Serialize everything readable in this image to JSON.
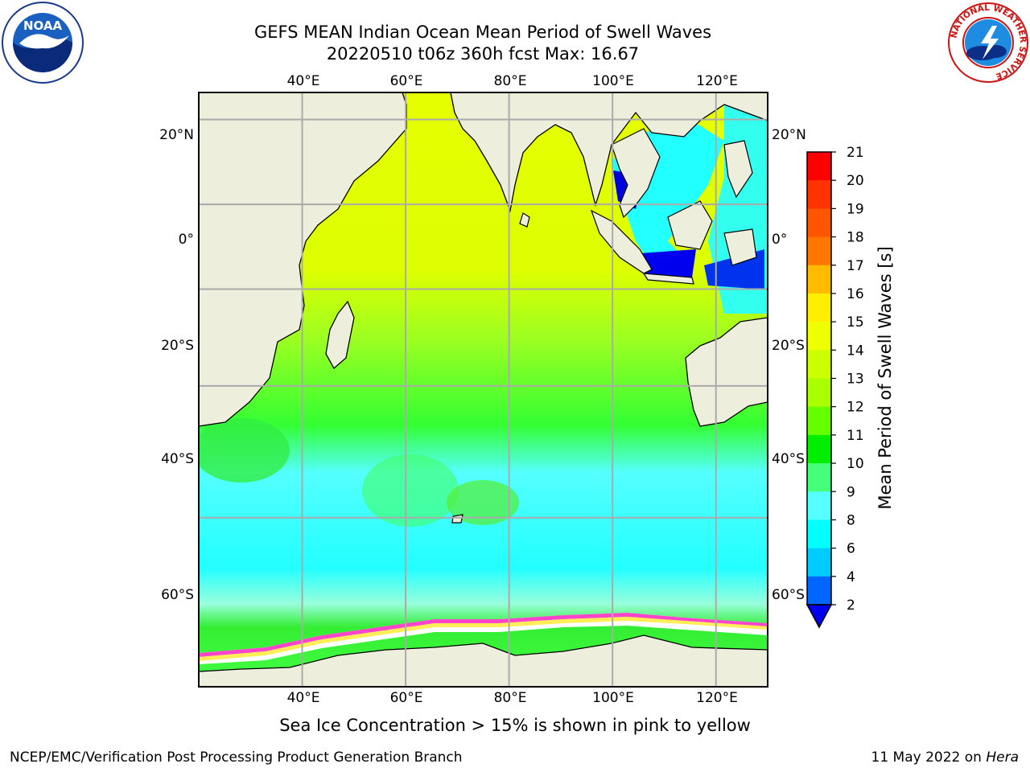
{
  "title_line1": "GEFS MEAN Indian Ocean Mean Period of Swell Waves",
  "title_line2": "20220510 t06z 360h fcst   Max: 16.67",
  "map": {
    "lon_labels": [
      "40°E",
      "60°E",
      "80°E",
      "100°E",
      "120°E"
    ],
    "lat_labels": [
      "20°N",
      "0°",
      "20°S",
      "40°S",
      "60°S"
    ],
    "lon_values": [
      40,
      60,
      80,
      100,
      120
    ],
    "lat_values": [
      20,
      0,
      -20,
      -40,
      -60
    ],
    "extent": {
      "lon_min": 20,
      "lon_max": 130,
      "lat_min": -75,
      "lat_max": 26
    },
    "colors": {
      "land": "#eeeedd",
      "grid": "#aaaaaa",
      "ice_pink": "#ff44cc",
      "ice_yellow": "#ffee55"
    }
  },
  "colorbar": {
    "label": "Mean Period of Swell Waves [s]",
    "ticks": [
      "21",
      "20",
      "19",
      "18",
      "17",
      "16",
      "15",
      "14",
      "13",
      "12",
      "11",
      "10",
      "9",
      "8",
      "6",
      "4",
      "2"
    ],
    "colors": [
      "#ff0000",
      "#ff3300",
      "#ff5500",
      "#ff7700",
      "#ff9900",
      "#ffbb00",
      "#ffee00",
      "#eeff00",
      "#ccff00",
      "#aaff00",
      "#66ff00",
      "#00ee00",
      "#44ff77",
      "#99ffee",
      "#55ffff",
      "#00ffff",
      "#00ccff",
      "#0066ff",
      "#0000ee"
    ]
  },
  "logos": {
    "noaa_text": "NOAA",
    "nws_ring_text": "NATIONAL WEATHER SERVICE"
  },
  "caption": "Sea Ice Concentration > 15% is shown in pink to yellow",
  "footer_left": "NCEP/EMC/Verification Post Processing Product Generation Branch",
  "footer_right_date": "11 May 2022 on ",
  "footer_right_host": "Hera"
}
